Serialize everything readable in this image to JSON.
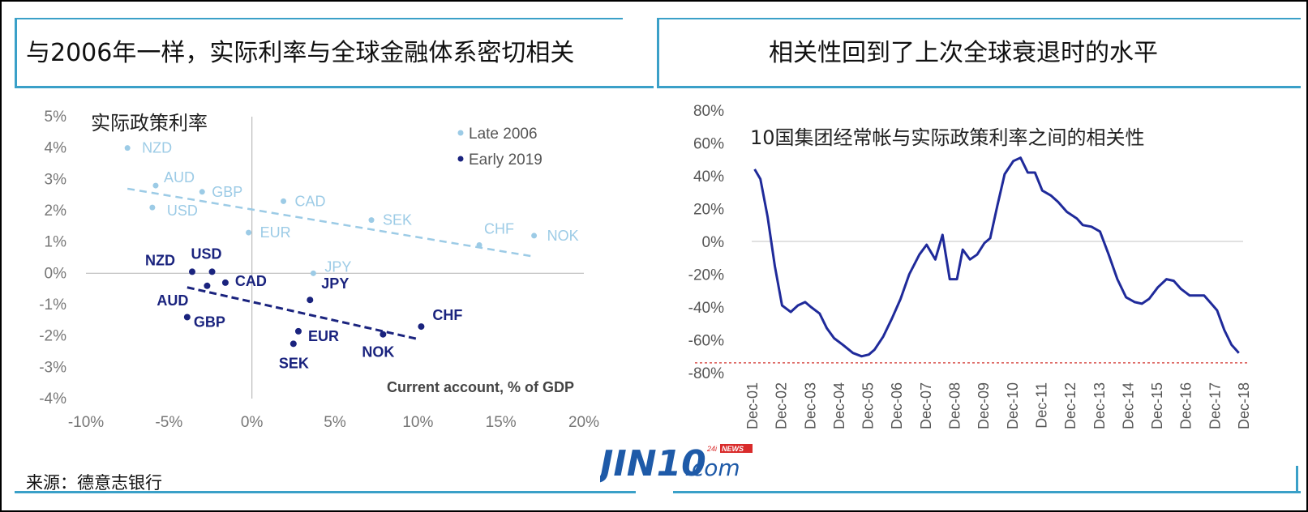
{
  "left_panel": {
    "title": "与2006年一样，实际利率与全球金融体系密切相关",
    "inner_title": "实际政策利率",
    "x_axis_label": "Current account, % of GDP",
    "source": "来源：德意志银行"
  },
  "right_panel": {
    "title": "相关性回到了上次全球衰退时的水平",
    "inner_title": "10国集团经常帐与实际政策利率之间的相关性"
  },
  "logo": {
    "main": "JIN10",
    "suffix": ".com",
    "badge_left": "24i",
    "badge_right": "NEWS"
  },
  "colors": {
    "late2006": "#9ccbe6",
    "early2019": "#1a237e",
    "line": "#1f2a9a",
    "threshold": "#d9534f",
    "accent": "#3aa0c8"
  },
  "chart_data": [
    {
      "type": "scatter",
      "xlabel": "Current account, % of GDP",
      "ylabel": "",
      "xlim": [
        -10,
        20
      ],
      "ylim": [
        -4,
        5
      ],
      "x_ticks": [
        "-10%",
        "-5%",
        "0%",
        "5%",
        "10%",
        "15%",
        "20%"
      ],
      "y_ticks": [
        "5%",
        "4%",
        "3%",
        "2%",
        "1%",
        "0%",
        "-1%",
        "-2%",
        "-3%",
        "-4%"
      ],
      "legend": [
        "Late 2006",
        "Early 2019"
      ],
      "legend_position": "top-right",
      "series": [
        {
          "name": "Late 2006",
          "points": [
            {
              "label": "NZD",
              "x": -7.5,
              "y": 4.0
            },
            {
              "label": "AUD",
              "x": -5.8,
              "y": 2.8
            },
            {
              "label": "GBP",
              "x": -3.0,
              "y": 2.6
            },
            {
              "label": "USD",
              "x": -6.0,
              "y": 2.1
            },
            {
              "label": "CAD",
              "x": 1.9,
              "y": 2.3
            },
            {
              "label": "EUR",
              "x": -0.2,
              "y": 1.3
            },
            {
              "label": "SEK",
              "x": 7.2,
              "y": 1.7
            },
            {
              "label": "CHF",
              "x": 13.7,
              "y": 0.9
            },
            {
              "label": "NOK",
              "x": 17.0,
              "y": 1.2
            },
            {
              "label": "JPY",
              "x": 3.7,
              "y": 0.0
            }
          ],
          "trend": [
            [
              -7.5,
              2.7
            ],
            [
              16.8,
              0.55
            ]
          ]
        },
        {
          "name": "Early 2019",
          "points": [
            {
              "label": "NZD",
              "x": -3.6,
              "y": 0.05
            },
            {
              "label": "USD",
              "x": -2.4,
              "y": 0.05
            },
            {
              "label": "CAD",
              "x": -1.6,
              "y": -0.3
            },
            {
              "label": "AUD",
              "x": -2.7,
              "y": -0.4
            },
            {
              "label": "GBP",
              "x": -3.9,
              "y": -1.4
            },
            {
              "label": "JPY",
              "x": 3.5,
              "y": -0.85
            },
            {
              "label": "EUR",
              "x": 2.8,
              "y": -1.85
            },
            {
              "label": "SEK",
              "x": 2.5,
              "y": -2.25
            },
            {
              "label": "NOK",
              "x": 7.9,
              "y": -1.95
            },
            {
              "label": "CHF",
              "x": 10.2,
              "y": -1.7
            }
          ],
          "trend": [
            [
              -3.9,
              -0.45
            ],
            [
              10.0,
              -2.1
            ]
          ]
        }
      ]
    },
    {
      "type": "line",
      "xlabel": "",
      "ylabel": "",
      "ylim": [
        -80,
        80
      ],
      "y_ticks": [
        "80%",
        "60%",
        "40%",
        "20%",
        "0%",
        "-20%",
        "-40%",
        "-60%",
        "-80%"
      ],
      "x_ticks": [
        "Dec-01",
        "Dec-02",
        "Dec-03",
        "Dec-04",
        "Dec-05",
        "Dec-06",
        "Dec-07",
        "Dec-08",
        "Dec-09",
        "Dec-10",
        "Dec-11",
        "Dec-12",
        "Dec-13",
        "Dec-14",
        "Dec-15",
        "Dec-16",
        "Dec-17",
        "Dec-18"
      ],
      "threshold": -74,
      "series": [
        {
          "values": [
            [
              2002.05,
              44
            ],
            [
              2002.25,
              38
            ],
            [
              2002.5,
              15
            ],
            [
              2002.75,
              -15
            ],
            [
              2003.0,
              -39
            ],
            [
              2003.3,
              -43
            ],
            [
              2003.55,
              -39
            ],
            [
              2003.8,
              -37
            ],
            [
              2004.0,
              -40
            ],
            [
              2004.3,
              -44
            ],
            [
              2004.55,
              -53
            ],
            [
              2004.8,
              -59
            ],
            [
              2005.1,
              -63
            ],
            [
              2005.45,
              -68
            ],
            [
              2005.75,
              -70
            ],
            [
              2006.0,
              -69
            ],
            [
              2006.2,
              -66
            ],
            [
              2006.5,
              -58
            ],
            [
              2006.8,
              -47
            ],
            [
              2007.1,
              -35
            ],
            [
              2007.4,
              -20
            ],
            [
              2007.75,
              -8
            ],
            [
              2008.0,
              -2
            ],
            [
              2008.3,
              -11
            ],
            [
              2008.55,
              4
            ],
            [
              2008.8,
              -23
            ],
            [
              2009.05,
              -23
            ],
            [
              2009.25,
              -5
            ],
            [
              2009.5,
              -11
            ],
            [
              2009.75,
              -8
            ],
            [
              2010.0,
              -1
            ],
            [
              2010.2,
              2
            ],
            [
              2010.45,
              22
            ],
            [
              2010.7,
              41
            ],
            [
              2011.0,
              49
            ],
            [
              2011.25,
              51
            ],
            [
              2011.5,
              42
            ],
            [
              2011.75,
              42
            ],
            [
              2012.0,
              31
            ],
            [
              2012.3,
              28
            ],
            [
              2012.55,
              24
            ],
            [
              2012.85,
              18
            ],
            [
              2013.2,
              14
            ],
            [
              2013.4,
              10
            ],
            [
              2013.7,
              9
            ],
            [
              2014.0,
              6
            ],
            [
              2014.3,
              -8
            ],
            [
              2014.6,
              -23
            ],
            [
              2014.9,
              -34
            ],
            [
              2015.2,
              -37
            ],
            [
              2015.45,
              -38
            ],
            [
              2015.7,
              -35
            ],
            [
              2016.0,
              -28
            ],
            [
              2016.3,
              -23
            ],
            [
              2016.55,
              -24
            ],
            [
              2016.8,
              -29
            ],
            [
              2017.1,
              -33
            ],
            [
              2017.35,
              -33
            ],
            [
              2017.6,
              -33
            ],
            [
              2017.85,
              -38
            ],
            [
              2018.05,
              -42
            ],
            [
              2018.3,
              -54
            ],
            [
              2018.55,
              -63
            ],
            [
              2018.8,
              -68
            ]
          ]
        }
      ]
    }
  ]
}
